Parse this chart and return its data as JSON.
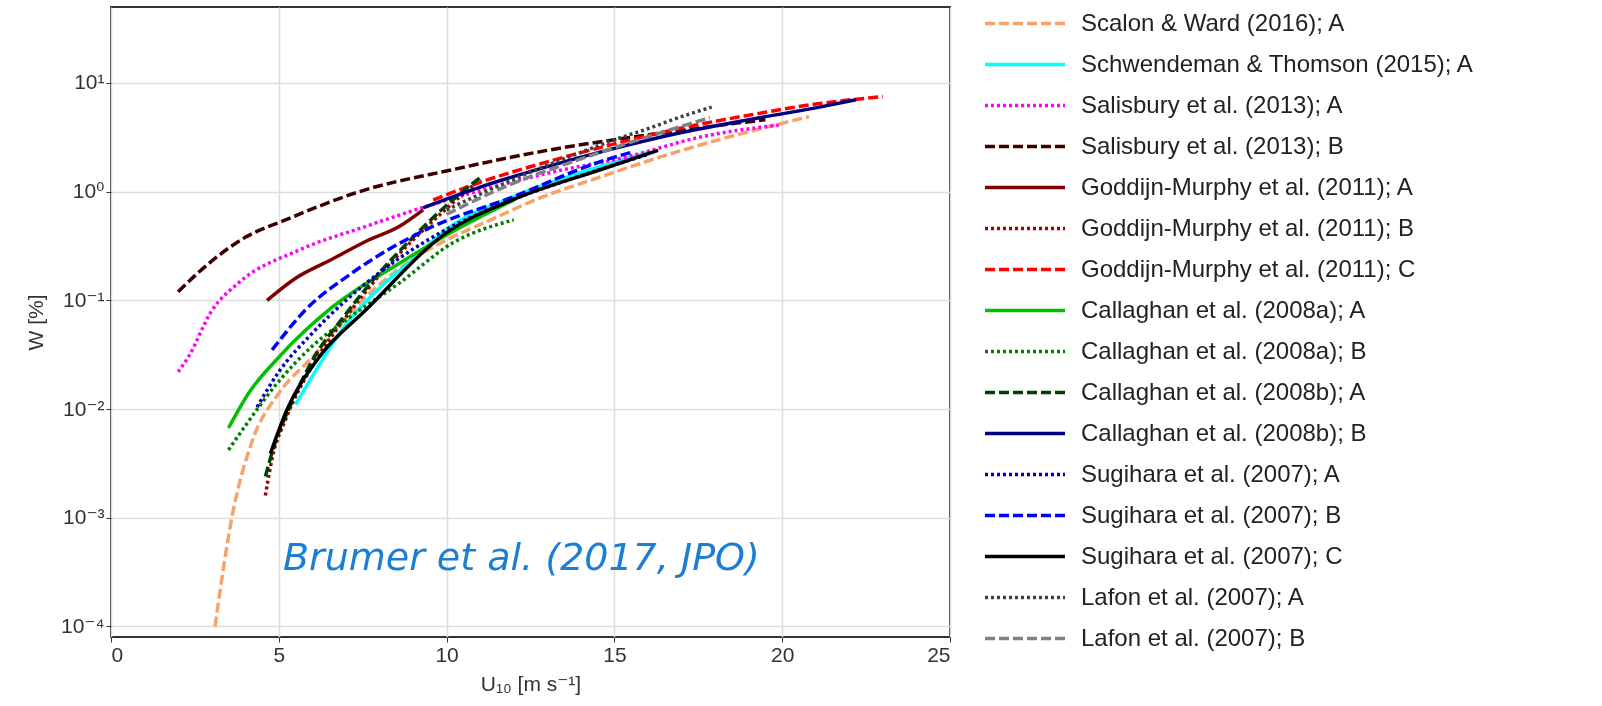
{
  "chart_data": {
    "type": "line",
    "xlabel": "U₁₀ [m s⁻¹]",
    "ylabel": "W [%]",
    "log": "y",
    "grid": true,
    "legend": "right",
    "xlim": [
      0,
      25
    ],
    "xticks": [
      0,
      5,
      10,
      15,
      20,
      25
    ],
    "ylim": [
      8e-05,
      50
    ],
    "yticks": [
      {
        "value": 0.0001,
        "label": "10⁻⁴"
      },
      {
        "value": 0.001,
        "label": "10⁻³"
      },
      {
        "value": 0.01,
        "label": "10⁻²"
      },
      {
        "value": 0.1,
        "label": "10⁻¹"
      },
      {
        "value": 1,
        "label": "10⁰"
      },
      {
        "value": 10,
        "label": "10¹"
      }
    ],
    "annotations": [
      "Brumer et al. (2017, JPO)"
    ],
    "series": [
      {
        "name": "Scalon & Ward (2016); A",
        "color": "#f5a36b",
        "line_style": "dashed",
        "x": [
          3.1,
          3.6,
          4.2,
          5,
          6,
          7,
          8,
          9,
          10,
          11.2,
          12.8,
          14.6,
          16.4,
          18.1,
          20.8
        ],
        "values": [
          0.0001,
          0.001,
          0.005,
          0.014,
          0.03,
          0.07,
          0.14,
          0.24,
          0.36,
          0.53,
          0.88,
          1.37,
          2.1,
          3.0,
          4.9
        ]
      },
      {
        "name": "Schwendeman & Thomson (2015); A",
        "color": "#00ffff",
        "line_style": "solid",
        "x": [
          5.5,
          6,
          7,
          8,
          9,
          10,
          12,
          14,
          16
        ],
        "values": [
          0.011,
          0.02,
          0.06,
          0.13,
          0.24,
          0.45,
          0.9,
          1.5,
          2.3
        ]
      },
      {
        "name": "Salisbury et al. (2013); A",
        "color": "#ff00ff",
        "line_style": "dotted",
        "x": [
          2,
          2.3,
          3,
          3.8,
          5.6,
          7.6,
          9.2,
          13.1,
          15.4,
          17.6,
          19.9
        ],
        "values": [
          0.022,
          0.03,
          0.08,
          0.145,
          0.29,
          0.48,
          0.7,
          1.5,
          2.1,
          3.2,
          4.1
        ]
      },
      {
        "name": "Salisbury et al. (2013); B",
        "color": "#3d0000",
        "line_style": "dashed",
        "x": [
          2,
          2.6,
          4,
          5.2,
          7.4,
          10.2,
          13,
          15.6,
          19.5
        ],
        "values": [
          0.12,
          0.18,
          0.38,
          0.55,
          1,
          1.6,
          2.4,
          3.2,
          4.6
        ]
      },
      {
        "name": "Goddijn-Murphy et al. (2011); A",
        "color": "#800000",
        "line_style": "solid",
        "x": [
          4.65,
          5.5,
          6.6,
          7.6,
          8.6,
          9.3
        ],
        "values": [
          0.1,
          0.16,
          0.24,
          0.35,
          0.48,
          0.68
        ]
      },
      {
        "name": "Goddijn-Murphy et al. (2011); B",
        "color": "#a00000",
        "line_style": "dotted",
        "x": [
          4.6,
          4.8,
          5.2,
          6,
          7,
          8,
          9,
          10,
          11
        ],
        "values": [
          0.0016,
          0.0035,
          0.008,
          0.025,
          0.07,
          0.17,
          0.36,
          0.7,
          1.3
        ]
      },
      {
        "name": "Goddijn-Murphy et al. (2011); C",
        "color": "#ff0000",
        "line_style": "dashed",
        "x": [
          9.6,
          11,
          13,
          15,
          17,
          19,
          21,
          23
        ],
        "values": [
          0.84,
          1.22,
          1.88,
          2.75,
          3.85,
          5.05,
          6.4,
          7.5
        ]
      },
      {
        "name": "Callaghan et al. (2008a); A",
        "color": "#00c000",
        "line_style": "solid",
        "x": [
          3.5,
          4.1,
          5,
          6.6,
          8.6,
          10,
          12
        ],
        "values": [
          0.0067,
          0.014,
          0.03,
          0.087,
          0.22,
          0.4,
          0.84
        ]
      },
      {
        "name": "Callaghan et al. (2008a); B",
        "color": "#008000",
        "line_style": "dotted",
        "x": [
          3.5,
          4,
          5,
          6,
          7,
          8.6,
          10.2,
          12
        ],
        "values": [
          0.0042,
          0.007,
          0.018,
          0.038,
          0.066,
          0.145,
          0.34,
          0.55
        ]
      },
      {
        "name": "Callaghan et al. (2008b); A",
        "color": "#004000",
        "line_style": "dashed",
        "x": [
          4.6,
          4.9,
          5.3,
          6,
          7,
          8,
          9,
          10,
          11
        ],
        "values": [
          0.0024,
          0.005,
          0.01,
          0.028,
          0.075,
          0.18,
          0.38,
          0.75,
          1.35
        ]
      },
      {
        "name": "Callaghan et al. (2008b); B",
        "color": "#000080",
        "line_style": "solid",
        "x": [
          9.3,
          11,
          13,
          15,
          17,
          19,
          21,
          22.2
        ],
        "values": [
          0.71,
          1.1,
          1.7,
          2.5,
          3.5,
          4.6,
          5.9,
          7.0
        ]
      },
      {
        "name": "Sugihara et al. (2007); A",
        "color": "#0000c0",
        "line_style": "dotted",
        "x": [
          4.35,
          5,
          6,
          7,
          8,
          10,
          12,
          14,
          16
        ],
        "values": [
          0.0104,
          0.022,
          0.05,
          0.1,
          0.18,
          0.45,
          0.85,
          1.4,
          2.2
        ]
      },
      {
        "name": "Sugihara et al. (2007); B",
        "color": "#0000ff",
        "line_style": "dashed",
        "x": [
          4.8,
          5.8,
          7.2,
          9.4,
          12,
          14.6,
          15.5
        ],
        "values": [
          0.035,
          0.082,
          0.18,
          0.45,
          0.9,
          1.9,
          2.3
        ]
      },
      {
        "name": "Sugihara et al. (2007); C",
        "color": "#000000",
        "line_style": "solid",
        "x": [
          4.75,
          5.24,
          6.2,
          7.6,
          10,
          12,
          14.6,
          16.3
        ],
        "values": [
          0.0039,
          0.0098,
          0.03,
          0.082,
          0.42,
          0.85,
          1.6,
          2.4
        ]
      },
      {
        "name": "Lafon et al. (2007); A",
        "color": "#404040",
        "line_style": "dotted",
        "x": [
          10,
          11,
          12,
          13,
          14,
          15,
          16,
          17,
          17.9
        ],
        "values": [
          0.68,
          0.95,
          1.3,
          1.75,
          2.3,
          3.0,
          3.8,
          4.9,
          6.0
        ]
      },
      {
        "name": "Lafon et al. (2007); B",
        "color": "#808080",
        "line_style": "dashed",
        "x": [
          10,
          12,
          14,
          16,
          17.85
        ],
        "values": [
          0.62,
          1.2,
          2.0,
          3.2,
          4.8
        ]
      }
    ]
  }
}
